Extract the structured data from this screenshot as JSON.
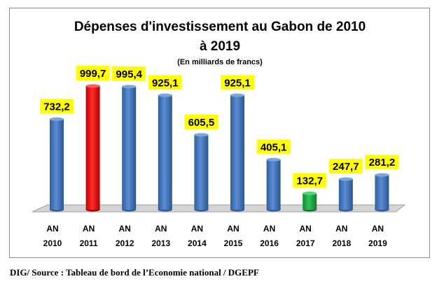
{
  "chart_data": {
    "type": "bar",
    "title_line1": "Dépenses d'investissement au Gabon de 2010",
    "title_line2": "à 2019",
    "subtitle": "(En milliards de francs)",
    "categories": [
      {
        "top": "AN",
        "bottom": "2010"
      },
      {
        "top": "AN",
        "bottom": "2011"
      },
      {
        "top": "AN",
        "bottom": "2012"
      },
      {
        "top": "AN",
        "bottom": "2013"
      },
      {
        "top": "AN",
        "bottom": "2014"
      },
      {
        "top": "AN",
        "bottom": "2015"
      },
      {
        "top": "AN",
        "bottom": "2016"
      },
      {
        "top": "AN",
        "bottom": "2017"
      },
      {
        "top": "AN",
        "bottom": "2018"
      },
      {
        "top": "AN",
        "bottom": "2019"
      }
    ],
    "values": [
      732.2,
      999.7,
      995.4,
      925.1,
      605.5,
      925.1,
      405.1,
      132.7,
      247.7,
      281.2
    ],
    "value_labels": [
      "732,2",
      "999,7",
      "995,4",
      "925,1",
      "605,5",
      "925,1",
      "405,1",
      "132,7",
      "247,7",
      "281,2"
    ],
    "ylim": [
      0,
      1000
    ],
    "colors": {
      "default": "#4a7cc4",
      "highlight_max": "#ee1111",
      "highlight_min": "#1fa845",
      "label_bg": "#ffff00",
      "floor": "#d4d4d4"
    },
    "highlights": {
      "2011": "highlight_max",
      "2017": "highlight_min"
    }
  },
  "source": "DIG/ Source : Tableau de bord de l’Economie national / DGEPF"
}
